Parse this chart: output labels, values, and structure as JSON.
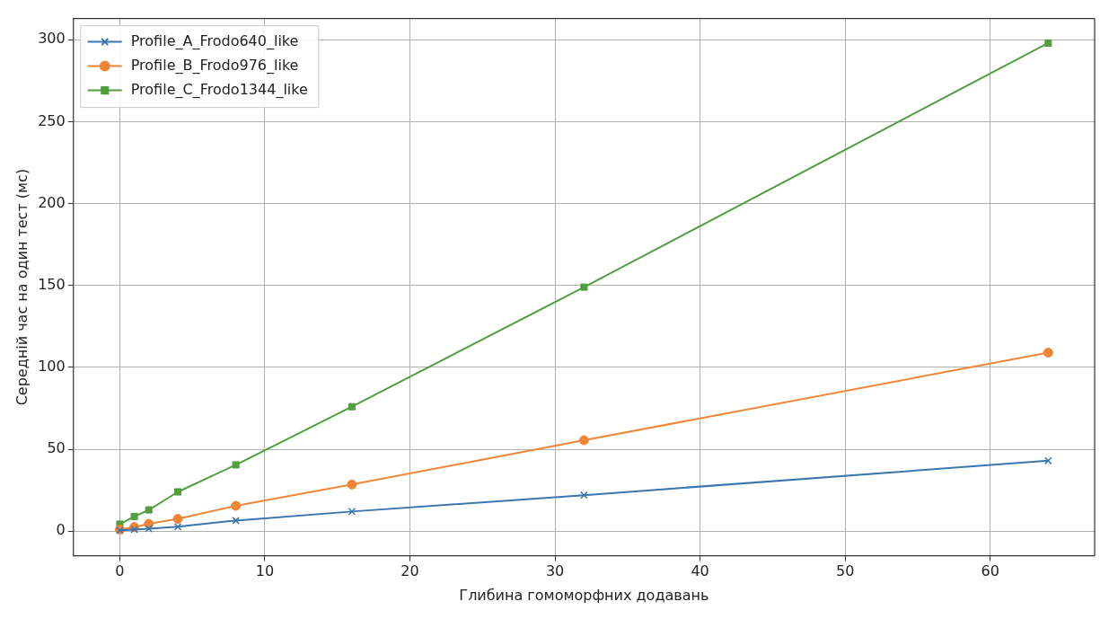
{
  "chart_data": {
    "type": "line",
    "xlabel": "Глибина гомоморфних додавань",
    "ylabel": "Середній час на один тест (мс)",
    "x": [
      0,
      1,
      2,
      4,
      8,
      16,
      32,
      64
    ],
    "series": [
      {
        "name": "Profile_A_Frodo640_like",
        "color": "#3b75af",
        "marker": "cross",
        "values": [
          0.5,
          1,
          1.5,
          2.7,
          6.5,
          12,
          22,
          43
        ]
      },
      {
        "name": "Profile_B_Frodo976_like",
        "color": "#ef8636",
        "marker": "circle",
        "values": [
          1,
          2.5,
          4.5,
          7.5,
          15.5,
          28.5,
          55.5,
          109
        ]
      },
      {
        "name": "Profile_C_Frodo1344_like",
        "color": "#519e3e",
        "marker": "square",
        "values": [
          4.3,
          9,
          13,
          24,
          40.5,
          76,
          149,
          298
        ]
      }
    ],
    "xlim": [
      -3.2,
      67.2
    ],
    "ylim": [
      -15,
      313
    ],
    "xticks": [
      0,
      10,
      20,
      30,
      40,
      50,
      60
    ],
    "yticks": [
      0,
      50,
      100,
      150,
      200,
      250,
      300
    ],
    "grid": true,
    "legend": "top left"
  }
}
